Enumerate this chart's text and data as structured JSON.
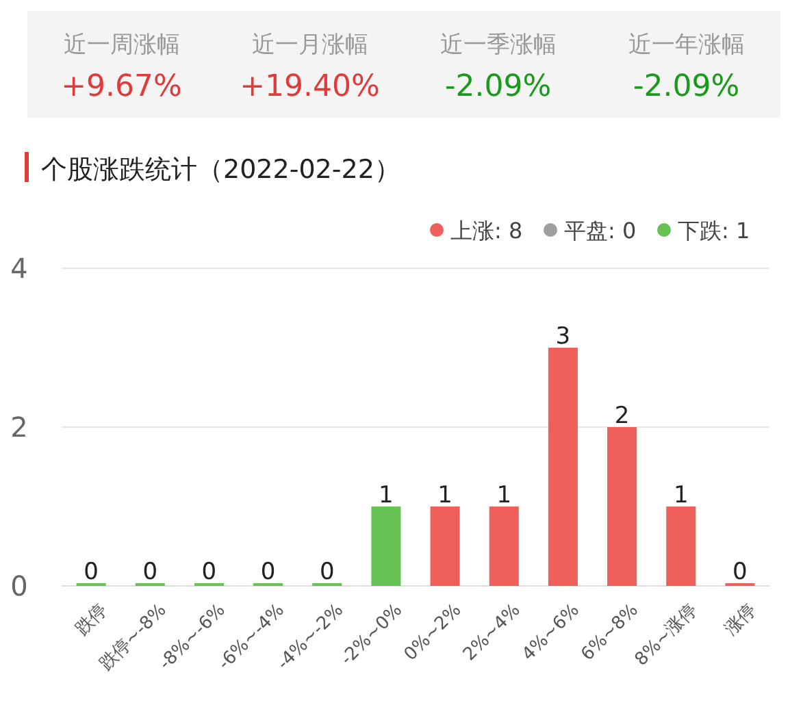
{
  "chart_data": [
    {
      "type": "other",
      "categories": [
        "近一周涨幅",
        "近一月涨幅",
        "近一季涨幅",
        "近一年涨幅"
      ],
      "value_labels": [
        "+9.67%",
        "+19.40%",
        "-2.09%",
        "-2.09%"
      ],
      "colors": [
        "#e03a3a",
        "#e03a3a",
        "#1a9a1a",
        "#1a9a1a"
      ]
    },
    {
      "type": "bar",
      "title": "个股涨跌统计（2022-02-22）",
      "categories": [
        "跌停",
        "跌停~-8%",
        "-8%~-6%",
        "-6%~-4%",
        "-4%~-2%",
        "-2%~0%",
        "0%~2%",
        "2%~4%",
        "4%~6%",
        "6%~8%",
        "8%~涨停",
        "涨停"
      ],
      "series": [
        {
          "name": "上涨: 8",
          "color": "#f0605a",
          "values": [
            null,
            null,
            null,
            null,
            null,
            null,
            1,
            1,
            3,
            2,
            1,
            0
          ]
        },
        {
          "name": "平盘: 0",
          "color": "#9e9e9e",
          "values": [
            null,
            null,
            null,
            null,
            null,
            null,
            null,
            null,
            null,
            null,
            null,
            null
          ]
        },
        {
          "name": "下跌: 1",
          "color": "#66c252",
          "values": [
            0,
            0,
            0,
            0,
            0,
            1,
            null,
            null,
            null,
            null,
            null,
            null
          ]
        }
      ],
      "ylim": [
        0,
        4
      ],
      "yticks": [
        0,
        2,
        4
      ],
      "grid": "y",
      "legend": "top right",
      "data_labels": true
    }
  ]
}
